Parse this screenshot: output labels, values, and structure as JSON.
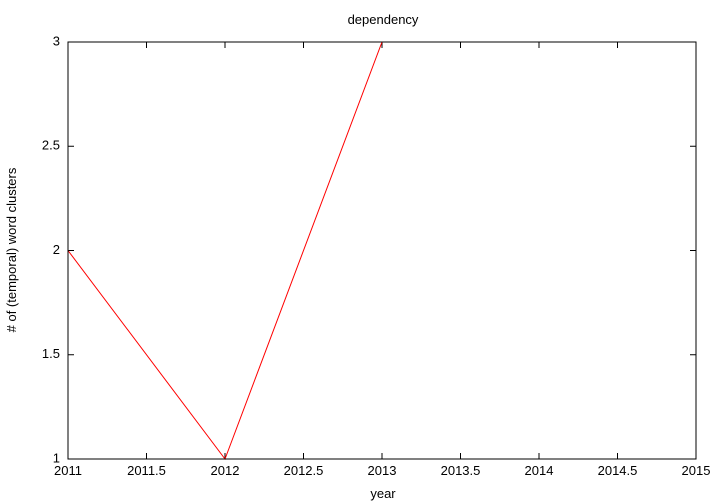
{
  "chart_data": {
    "type": "line",
    "title": "dependency",
    "xlabel": "year",
    "ylabel": "# of (temporal) word clusters",
    "xlim": [
      2011,
      2015
    ],
    "ylim": [
      1,
      3
    ],
    "x_ticks": [
      "2011",
      "2011.5",
      "2012",
      "2012.5",
      "2013",
      "2013.5",
      "2014",
      "2014.5",
      "2015"
    ],
    "y_ticks": [
      "1",
      "1.5",
      "2",
      "2.5",
      "3"
    ],
    "grid": false,
    "series": [
      {
        "color": "#ff0000",
        "x": [
          2011,
          2012,
          2013,
          2014,
          2015
        ],
        "y": [
          2,
          1,
          3,
          3,
          3
        ]
      }
    ]
  }
}
